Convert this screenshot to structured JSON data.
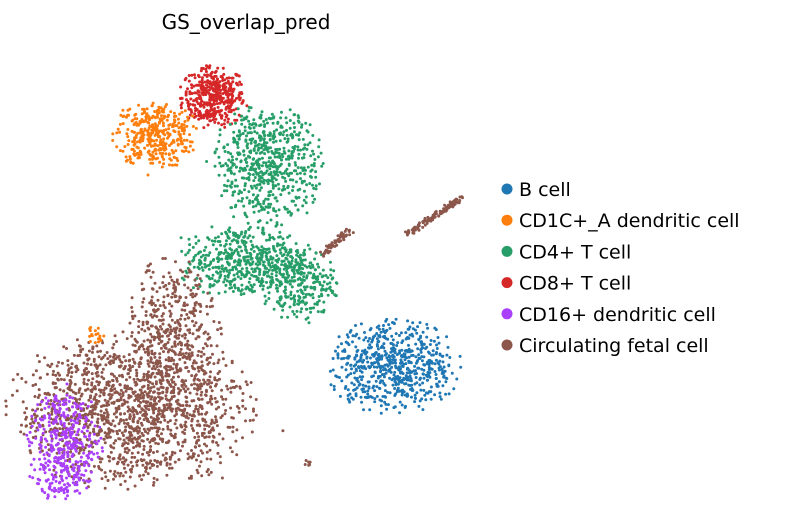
{
  "chart_data": {
    "type": "scatter",
    "title": "GS_overlap_pred",
    "xlabel": "",
    "ylabel": "",
    "axes_visible": false,
    "grid": false,
    "legend": {
      "placement": "right",
      "entries": [
        {
          "label": "B cell",
          "color": "#1f77b4"
        },
        {
          "label": "CD1C+_A dendritic cell",
          "color": "#ff7f0e"
        },
        {
          "label": "CD4+ T cell",
          "color": "#279e68"
        },
        {
          "label": "CD8+ T cell",
          "color": "#d62728"
        },
        {
          "label": "CD16+ dendritic cell",
          "color": "#aa40fc"
        },
        {
          "label": "Circulating fetal cell",
          "color": "#8c564b"
        }
      ]
    },
    "clusters": [
      {
        "series": "CD8+ T cell",
        "center": [
          0.43,
          0.92
        ],
        "spread": [
          0.035,
          0.04
        ],
        "n": 420,
        "shape": "blob"
      },
      {
        "series": "CD1C+_A dendritic cell",
        "center": [
          0.3,
          0.82
        ],
        "spread": [
          0.045,
          0.045
        ],
        "n": 380,
        "shape": "blob"
      },
      {
        "series": "CD4+ T cell",
        "center": [
          0.55,
          0.74
        ],
        "spread": [
          0.06,
          0.08
        ],
        "n": 620,
        "shape": "blob"
      },
      {
        "series": "CD4+ T cell",
        "center": [
          0.5,
          0.48
        ],
        "spread": [
          0.07,
          0.05
        ],
        "n": 520,
        "shape": "blob"
      },
      {
        "series": "CD4+ T cell",
        "center": [
          0.62,
          0.42
        ],
        "spread": [
          0.04,
          0.05
        ],
        "n": 260,
        "shape": "blob"
      },
      {
        "series": "Circulating fetal cell",
        "center": [
          0.92,
          0.6
        ],
        "spread": [
          0.06,
          0.06
        ],
        "n": 120,
        "shape": "strand"
      },
      {
        "series": "Circulating fetal cell",
        "center": [
          0.7,
          0.53
        ],
        "spread": [
          0.03,
          0.04
        ],
        "n": 60,
        "shape": "strand"
      },
      {
        "series": "B cell",
        "center": [
          0.83,
          0.2
        ],
        "spread": [
          0.07,
          0.06
        ],
        "n": 640,
        "shape": "blob"
      },
      {
        "series": "Circulating fetal cell",
        "center": [
          0.25,
          0.08
        ],
        "spread": [
          0.13,
          0.1
        ],
        "n": 1500,
        "shape": "blob"
      },
      {
        "series": "Circulating fetal cell",
        "center": [
          0.34,
          0.28
        ],
        "spread": [
          0.05,
          0.1
        ],
        "n": 420,
        "shape": "blob"
      },
      {
        "series": "CD16+ dendritic cell",
        "center": [
          0.1,
          -0.02
        ],
        "spread": [
          0.04,
          0.08
        ],
        "n": 420,
        "shape": "blob"
      },
      {
        "series": "CD1C+_A dendritic cell",
        "center": [
          0.17,
          0.29
        ],
        "spread": [
          0.01,
          0.015
        ],
        "n": 18,
        "shape": "blob"
      },
      {
        "series": "Circulating fetal cell",
        "center": [
          0.64,
          -0.06
        ],
        "spread": [
          0.005,
          0.005
        ],
        "n": 6,
        "shape": "blob"
      }
    ]
  }
}
